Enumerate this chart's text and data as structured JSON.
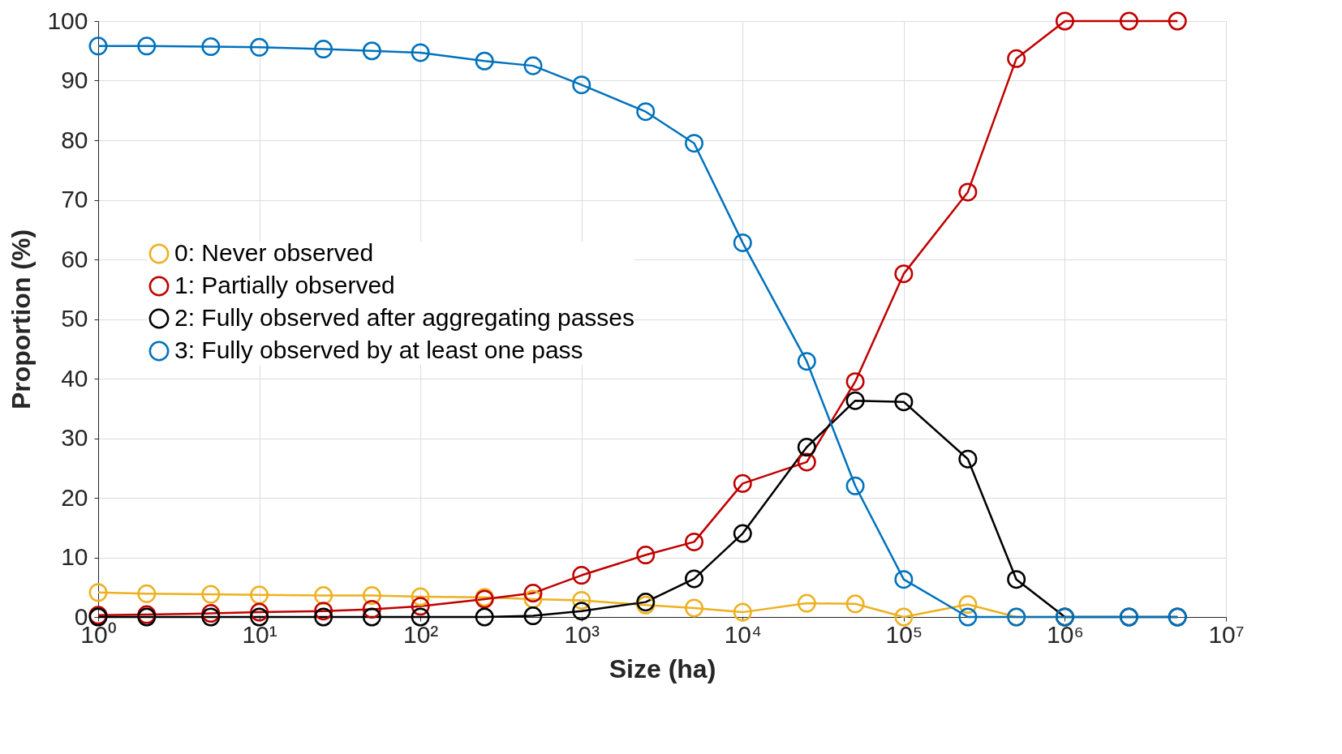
{
  "chart_data": {
    "type": "line",
    "xlabel": "Size (ha)",
    "ylabel": "Proportion (%)",
    "x": [
      1,
      2,
      5,
      10,
      25,
      50,
      100,
      250,
      500,
      1000,
      2500,
      5000,
      10000,
      25000,
      50000,
      100000,
      250000,
      500000,
      1000000,
      2500000,
      5000000
    ],
    "series": [
      {
        "name": "0: Never observed",
        "color": "#edb120",
        "values": [
          4.1,
          3.9,
          3.8,
          3.7,
          3.6,
          3.6,
          3.4,
          3.3,
          3,
          2.8,
          2,
          1.5,
          0.8,
          2.3,
          2.2,
          0,
          2.1,
          0,
          0,
          null,
          null
        ]
      },
      {
        "name": "1: Partially observed",
        "color": "#c00000",
        "values": [
          0.3,
          0.4,
          0.6,
          0.8,
          1.0,
          1.3,
          1.8,
          3,
          4,
          7,
          10.4,
          12.6,
          22.4,
          26,
          39.5,
          57.6,
          71.3,
          93.7,
          100,
          100,
          100
        ]
      },
      {
        "name": "2: Fully observed after aggregating passes",
        "color": "#000000",
        "values": [
          0,
          0,
          0,
          0,
          0,
          0,
          0,
          0,
          0.2,
          1,
          2.5,
          6.4,
          14,
          28.5,
          36.3,
          36.1,
          26.5,
          6.3,
          0,
          0,
          0
        ]
      },
      {
        "name": "3: Fully observed by at least one pass",
        "color": "#0072bd",
        "values": [
          95.8,
          95.8,
          95.7,
          95.6,
          95.3,
          95,
          94.7,
          93.3,
          92.5,
          89.3,
          84.8,
          79.5,
          62.8,
          42.9,
          22,
          6.3,
          0,
          0,
          0,
          0,
          0
        ]
      }
    ],
    "log": "x",
    "xlim": [
      1,
      10000000
    ],
    "xticks": [
      {
        "value": 1,
        "label": "10⁰"
      },
      {
        "value": 10,
        "label": "10¹"
      },
      {
        "value": 100,
        "label": "10²"
      },
      {
        "value": 1000,
        "label": "10³"
      },
      {
        "value": 10000,
        "label": "10⁴"
      },
      {
        "value": 100000,
        "label": "10⁵"
      },
      {
        "value": 1000000,
        "label": "10⁶"
      },
      {
        "value": 10000000,
        "label": "10⁷"
      }
    ],
    "ylim": [
      0,
      100
    ],
    "yticks": [
      0,
      10,
      20,
      30,
      40,
      50,
      60,
      70,
      80,
      90,
      100
    ],
    "grid": true,
    "legend": "left",
    "marker": "circle",
    "line_style": "solid"
  }
}
